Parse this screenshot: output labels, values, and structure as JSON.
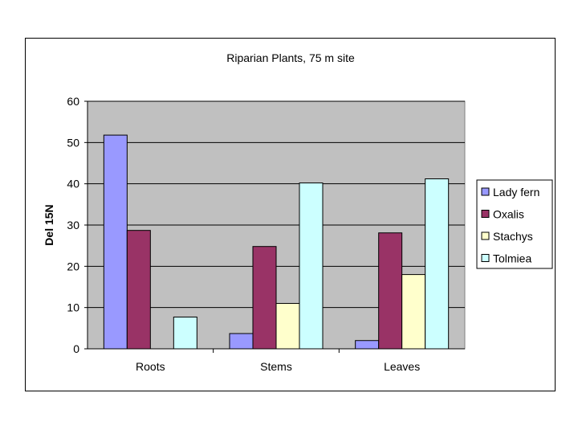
{
  "chart_data": {
    "type": "bar",
    "title": "Riparian Plants, 75 m site",
    "xlabel": "",
    "ylabel": "Del 15N",
    "categories": [
      "Roots",
      "Stems",
      "Leaves"
    ],
    "ylim": [
      0,
      60
    ],
    "yticks": [
      0,
      10,
      20,
      30,
      40,
      50,
      60
    ],
    "grid": true,
    "legend_position": "right",
    "series": [
      {
        "name": "Lady fern",
        "color": "#9999FF",
        "values": [
          51.8,
          3.7,
          2.0
        ]
      },
      {
        "name": "Oxalis",
        "color": "#993366",
        "values": [
          28.7,
          24.8,
          28.1
        ]
      },
      {
        "name": "Stachys",
        "color": "#FFFFCC",
        "values": [
          null,
          11.0,
          18.0
        ]
      },
      {
        "name": "Tolmiea",
        "color": "#CCFFFF",
        "values": [
          7.7,
          40.2,
          41.2
        ]
      }
    ],
    "plot_background": "#C0C0C0"
  }
}
